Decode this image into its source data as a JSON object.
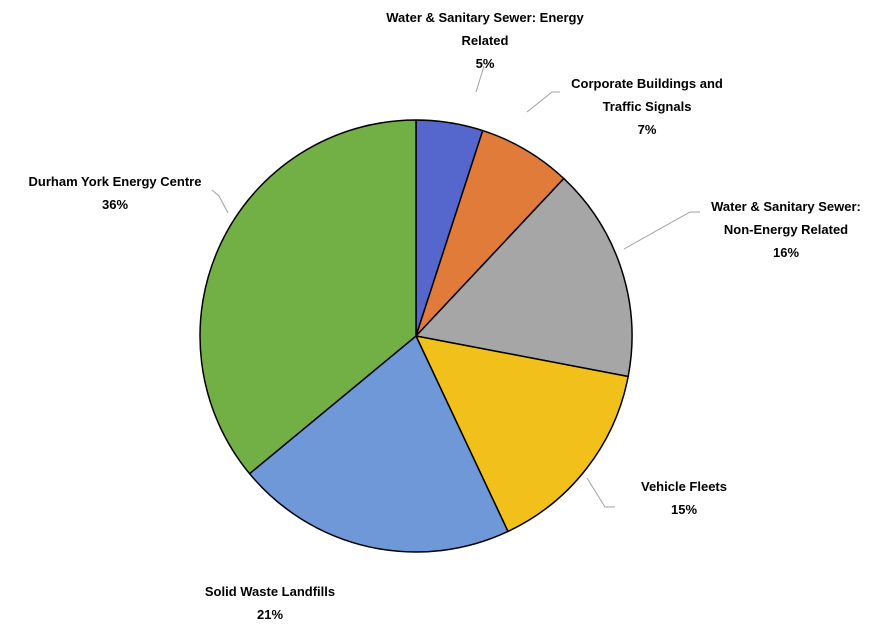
{
  "chart_data": {
    "type": "pie",
    "title": "",
    "slices": [
      {
        "label_lines": [
          "Water & Sanitary Sewer: Energy",
          "Related"
        ],
        "pct": "5%",
        "value": 5,
        "color": "#5566CC"
      },
      {
        "label_lines": [
          "Corporate Buildings and",
          "Traffic Signals"
        ],
        "pct": "7%",
        "value": 7,
        "color": "#E07B39"
      },
      {
        "label_lines": [
          "Water & Sanitary Sewer:",
          "Non-Energy Related"
        ],
        "pct": "16%",
        "value": 16,
        "color": "#A6A6A6"
      },
      {
        "label_lines": [
          "Vehicle Fleets"
        ],
        "pct": "15%",
        "value": 15,
        "color": "#F2C01A"
      },
      {
        "label_lines": [
          "Solid Waste Landfills"
        ],
        "pct": "21%",
        "value": 21,
        "color": "#6F98D8"
      },
      {
        "label_lines": [
          "Durham York Energy Centre"
        ],
        "pct": "36%",
        "value": 36,
        "color": "#72B045"
      }
    ],
    "start_angle": "12 o'clock",
    "direction": "clockwise",
    "legend": "none",
    "slice_outline": "#000000",
    "leader_line_color": "#A0A0A0"
  }
}
